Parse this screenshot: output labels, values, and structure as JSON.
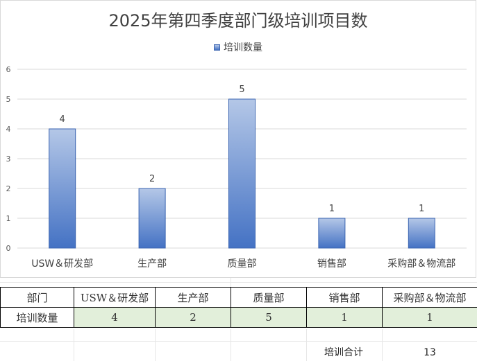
{
  "chart_data": {
    "type": "bar",
    "title": "2025年第四季度部门级培训项目数",
    "categories": [
      "USW＆研发部",
      "生产部",
      "质量部",
      "销售部",
      "采购部＆物流部"
    ],
    "series": [
      {
        "name": "培训数量",
        "values": [
          4,
          2,
          5,
          1,
          1
        ]
      }
    ],
    "ylim": [
      0,
      6
    ],
    "yticks": [
      0,
      1,
      2,
      3,
      4,
      5,
      6
    ],
    "grid": true,
    "legend": "top",
    "data_labels": true,
    "colors": {
      "bar_top": "#b4c7e7",
      "bar_bottom": "#4472c4",
      "bar_border": "#3a63b0",
      "grid": "#d9d9d9"
    }
  },
  "table": {
    "header_label": "部门",
    "departments": [
      "USW＆研发部",
      "生产部",
      "质量部",
      "销售部",
      "采购部＆物流部"
    ],
    "row_label": "培训数量",
    "values": [
      "4",
      "2",
      "5",
      "1",
      "1"
    ],
    "total_label": "培训合计",
    "total_value": "13"
  },
  "colors": {
    "value_cell_bg": "#e2efda"
  }
}
